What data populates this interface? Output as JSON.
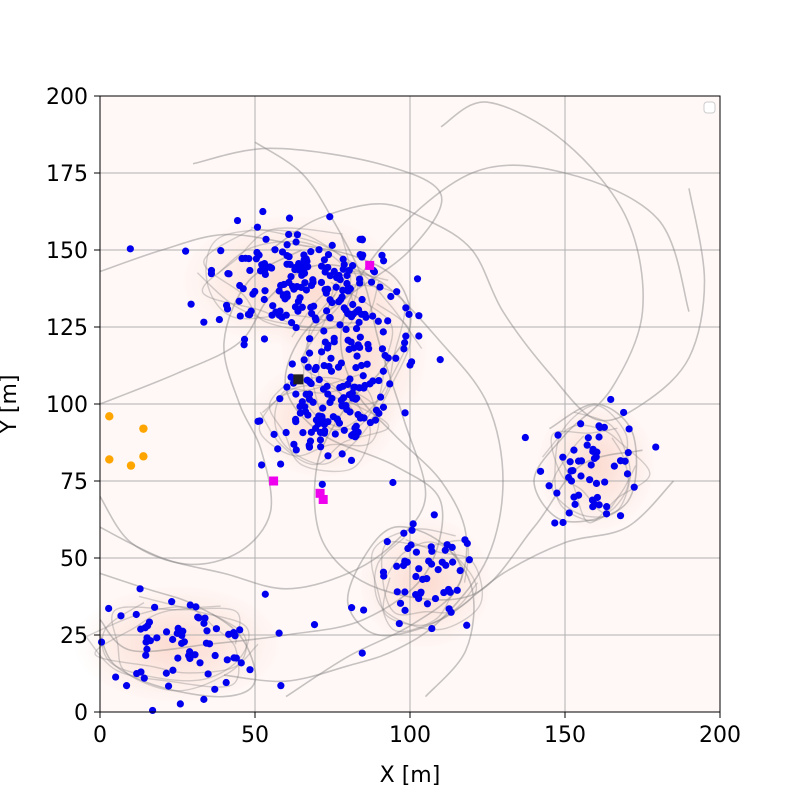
{
  "chart_data": {
    "type": "scatter",
    "title": "",
    "xlabel": "X [m]",
    "ylabel": "Y [m]",
    "xlim": [
      0,
      200
    ],
    "ylim": [
      0,
      200
    ],
    "xticks": [
      0,
      50,
      100,
      150,
      200
    ],
    "yticks": [
      0,
      25,
      50,
      75,
      100,
      125,
      150,
      175,
      200
    ],
    "grid": true,
    "legend": "top-right (empty)",
    "colors": {
      "background": "#fff8f6",
      "density": "#f4a58a",
      "trajectory": "#808080",
      "blue_points": "#0000ee",
      "orange_points": "#ffa500",
      "magenta_markers": "#ee00ee",
      "black_marker": "#222222",
      "grid": "#b0b0b0"
    },
    "clusters": [
      {
        "cx": 62,
        "cy": 140,
        "sx": 15,
        "sy": 9,
        "n": 150
      },
      {
        "cx": 82,
        "cy": 118,
        "sx": 10,
        "sy": 13,
        "n": 110
      },
      {
        "cx": 72,
        "cy": 95,
        "sx": 10,
        "sy": 8,
        "n": 80
      },
      {
        "cx": 105,
        "cy": 42,
        "sx": 9,
        "sy": 9,
        "n": 55
      },
      {
        "cx": 160,
        "cy": 80,
        "sx": 8,
        "sy": 9,
        "n": 55
      },
      {
        "cx": 25,
        "cy": 22,
        "sx": 14,
        "sy": 8,
        "n": 70
      }
    ],
    "orange_points": [
      [
        3,
        96
      ],
      [
        3,
        82
      ],
      [
        14,
        92
      ],
      [
        10,
        80
      ],
      [
        14,
        83
      ]
    ],
    "magenta_markers": [
      [
        87,
        145
      ],
      [
        56,
        75
      ],
      [
        71,
        71
      ],
      [
        72,
        69
      ]
    ],
    "black_marker": [
      64,
      108
    ],
    "trajectories": [
      [
        [
          0,
          143
        ],
        [
          20,
          150
        ],
        [
          40,
          155
        ],
        [
          62,
          152
        ],
        [
          82,
          148
        ],
        [
          96,
          140
        ],
        [
          100,
          125
        ],
        [
          90,
          110
        ],
        [
          80,
          100
        ],
        [
          70,
          80
        ],
        [
          72,
          55
        ],
        [
          90,
          40
        ],
        [
          120,
          38
        ],
        [
          140,
          60
        ],
        [
          155,
          80
        ],
        [
          175,
          85
        ]
      ],
      [
        [
          30,
          178
        ],
        [
          55,
          183
        ],
        [
          90,
          178
        ],
        [
          110,
          168
        ],
        [
          100,
          150
        ],
        [
          80,
          135
        ],
        [
          65,
          122
        ],
        [
          60,
          105
        ],
        [
          72,
          90
        ],
        [
          95,
          80
        ],
        [
          110,
          68
        ],
        [
          105,
          45
        ],
        [
          85,
          30
        ],
        [
          60,
          25
        ],
        [
          35,
          22
        ],
        [
          10,
          20
        ],
        [
          0,
          30
        ]
      ],
      [
        [
          110,
          190
        ],
        [
          125,
          198
        ],
        [
          150,
          185
        ],
        [
          170,
          160
        ],
        [
          175,
          130
        ],
        [
          165,
          105
        ],
        [
          150,
          90
        ],
        [
          140,
          75
        ],
        [
          150,
          62
        ],
        [
          170,
          68
        ],
        [
          172,
          90
        ],
        [
          160,
          100
        ],
        [
          145,
          92
        ]
      ],
      [
        [
          0,
          60
        ],
        [
          20,
          50
        ],
        [
          40,
          45
        ],
        [
          60,
          40
        ],
        [
          80,
          45
        ],
        [
          95,
          55
        ],
        [
          105,
          70
        ],
        [
          98,
          95
        ],
        [
          90,
          120
        ],
        [
          85,
          140
        ],
        [
          75,
          160
        ],
        [
          65,
          175
        ],
        [
          50,
          185
        ]
      ],
      [
        [
          0,
          45
        ],
        [
          15,
          40
        ],
        [
          30,
          35
        ],
        [
          45,
          25
        ],
        [
          50,
          10
        ],
        [
          40,
          5
        ],
        [
          20,
          8
        ],
        [
          5,
          15
        ],
        [
          0,
          25
        ]
      ],
      [
        [
          190,
          170
        ],
        [
          195,
          140
        ],
        [
          190,
          115
        ],
        [
          175,
          100
        ],
        [
          160,
          95
        ],
        [
          145,
          110
        ],
        [
          130,
          130
        ],
        [
          120,
          150
        ],
        [
          105,
          160
        ],
        [
          90,
          165
        ],
        [
          70,
          160
        ],
        [
          55,
          150
        ]
      ],
      [
        [
          0,
          100
        ],
        [
          25,
          110
        ],
        [
          45,
          120
        ],
        [
          55,
          135
        ],
        [
          70,
          145
        ],
        [
          90,
          140
        ],
        [
          110,
          120
        ],
        [
          125,
          100
        ],
        [
          130,
          75
        ],
        [
          125,
          50
        ],
        [
          110,
          30
        ],
        [
          95,
          20
        ],
        [
          80,
          15
        ],
        [
          60,
          10
        ],
        [
          40,
          12
        ]
      ],
      [
        [
          60,
          5
        ],
        [
          80,
          18
        ],
        [
          100,
          28
        ],
        [
          115,
          40
        ],
        [
          118,
          58
        ],
        [
          110,
          75
        ],
        [
          95,
          90
        ],
        [
          82,
          105
        ],
        [
          78,
          125
        ],
        [
          90,
          150
        ],
        [
          120,
          175
        ],
        [
          150,
          175
        ],
        [
          180,
          160
        ],
        [
          190,
          130
        ]
      ],
      [
        [
          0,
          70
        ],
        [
          10,
          55
        ],
        [
          28,
          48
        ],
        [
          45,
          52
        ],
        [
          55,
          65
        ],
        [
          52,
          85
        ],
        [
          45,
          100
        ],
        [
          40,
          120
        ],
        [
          48,
          140
        ],
        [
          65,
          150
        ]
      ],
      [
        [
          105,
          5
        ],
        [
          118,
          20
        ],
        [
          120,
          40
        ],
        [
          110,
          55
        ],
        [
          95,
          60
        ],
        [
          85,
          50
        ],
        [
          80,
          35
        ],
        [
          90,
          25
        ],
        [
          110,
          30
        ],
        [
          130,
          45
        ],
        [
          150,
          55
        ],
        [
          170,
          60
        ],
        [
          185,
          75
        ]
      ]
    ]
  }
}
